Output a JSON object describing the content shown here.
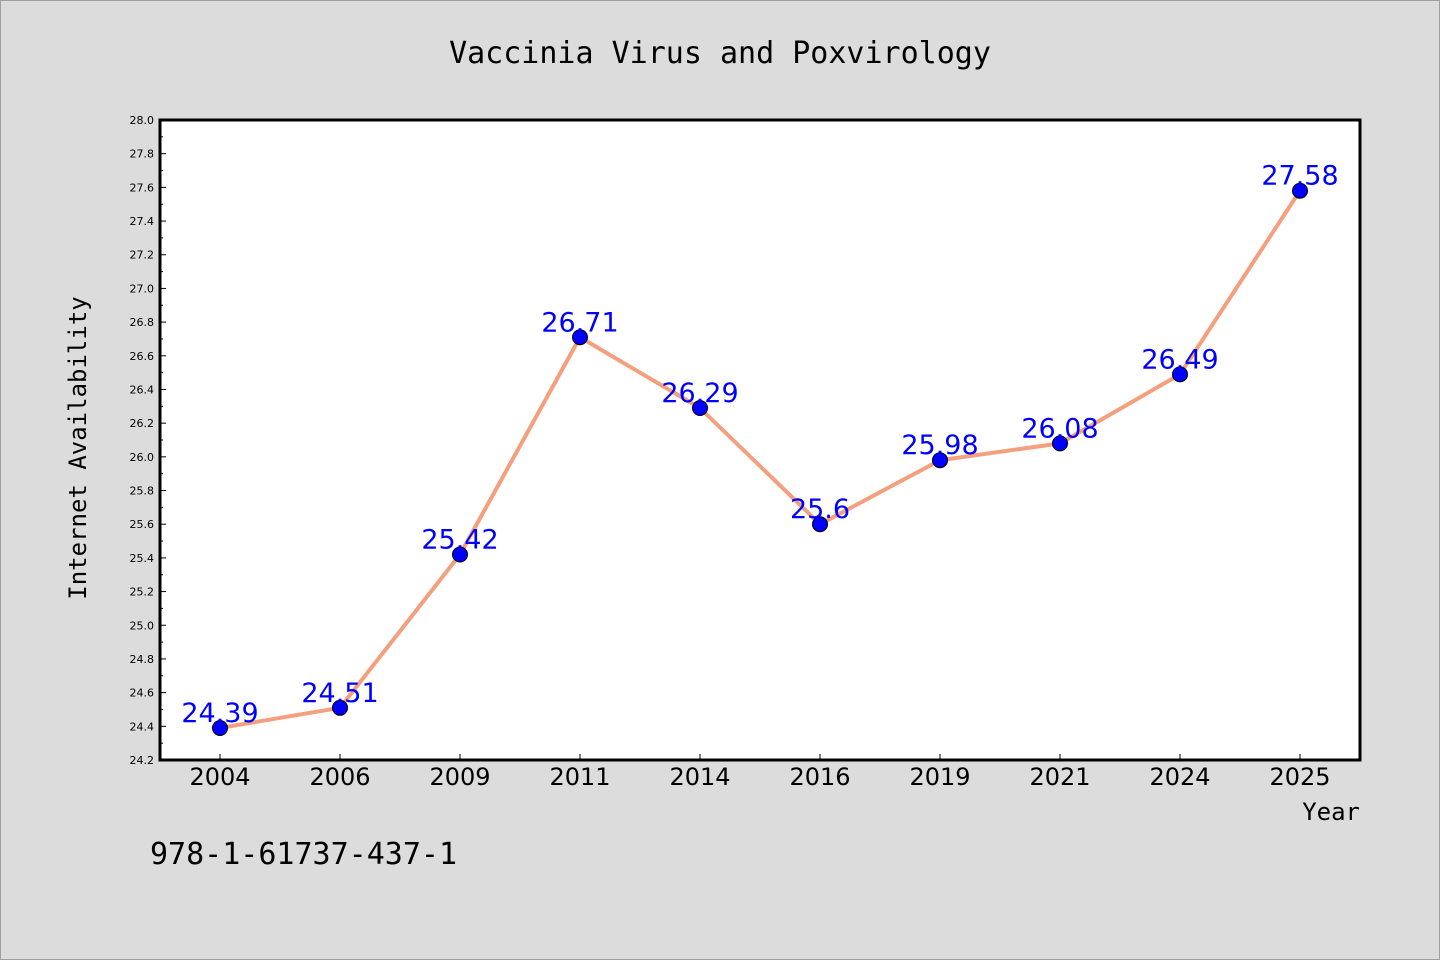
{
  "chart_data": {
    "type": "line",
    "title": "Vaccinia Virus and Poxvirology",
    "xlabel": "Year",
    "ylabel": "Internet Availability",
    "categories": [
      "2004",
      "2006",
      "2009",
      "2011",
      "2014",
      "2016",
      "2019",
      "2021",
      "2024",
      "2025"
    ],
    "series": [
      {
        "values": [
          24.39,
          24.51,
          25.42,
          26.71,
          26.29,
          25.6,
          25.98,
          26.08,
          26.49,
          27.58
        ],
        "labels": [
          "24.39",
          "24.51",
          "25.42",
          "26.71",
          "26.29",
          "25.6",
          "25.98",
          "26.08",
          "26.49",
          "27.58"
        ]
      }
    ],
    "ylim": [
      24.2,
      28.0
    ],
    "yticks": [
      "24.2",
      "24.4",
      "24.6",
      "24.8",
      "25.0",
      "25.2",
      "25.4",
      "25.6",
      "25.8",
      "26.0",
      "26.2",
      "26.4",
      "26.6",
      "26.8",
      "27.0",
      "27.2",
      "27.4",
      "27.6",
      "27.8",
      "28.0"
    ],
    "grid": false,
    "legend": "none",
    "colors": {
      "line": "#f4a07e",
      "marker": "#0000ff",
      "data_label": "#0000ff",
      "plot_background": "#ffffff",
      "figure_background": "#dcdcdc"
    }
  },
  "footnote": "978-1-61737-437-1"
}
